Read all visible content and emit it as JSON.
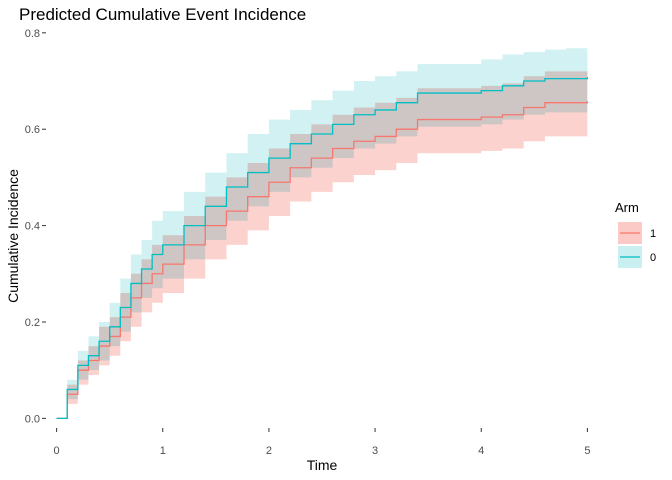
{
  "chart_data": {
    "type": "line",
    "title": "Predicted Cumulative Event Incidence",
    "xlabel": "Time",
    "ylabel": "Cumulative Incidence",
    "xlim": [
      -0.1,
      5.1
    ],
    "ylim": [
      -0.02,
      0.81
    ],
    "x_ticks": [
      0,
      1,
      2,
      3,
      4,
      5
    ],
    "y_ticks": [
      0.0,
      0.2,
      0.4,
      0.6,
      0.8
    ],
    "y_tick_labels": [
      "0.0",
      "0.2",
      "0.4",
      "0.6",
      "0.8"
    ],
    "grid": false,
    "legend": {
      "title": "Arm",
      "placement": "right"
    },
    "series": [
      {
        "name": "1",
        "color": "#F8766D",
        "ribbon_color": "#FCCAC6",
        "x": [
          0,
          0.1,
          0.2,
          0.3,
          0.4,
          0.5,
          0.6,
          0.7,
          0.8,
          0.9,
          1.0,
          1.2,
          1.4,
          1.6,
          1.8,
          2.0,
          2.2,
          2.4,
          2.6,
          2.8,
          3.0,
          3.2,
          3.4,
          3.6,
          3.8,
          4.0,
          4.2,
          4.4,
          4.6,
          4.8,
          5.0
        ],
        "y": [
          0,
          0.05,
          0.1,
          0.12,
          0.15,
          0.17,
          0.21,
          0.25,
          0.28,
          0.3,
          0.32,
          0.36,
          0.4,
          0.43,
          0.46,
          0.49,
          0.52,
          0.54,
          0.56,
          0.575,
          0.585,
          0.6,
          0.62,
          0.62,
          0.62,
          0.625,
          0.63,
          0.645,
          0.655,
          0.655,
          0.658
        ],
        "lower": [
          0,
          0.03,
          0.07,
          0.09,
          0.11,
          0.13,
          0.16,
          0.19,
          0.22,
          0.24,
          0.26,
          0.29,
          0.33,
          0.36,
          0.39,
          0.42,
          0.45,
          0.47,
          0.49,
          0.505,
          0.515,
          0.53,
          0.55,
          0.55,
          0.55,
          0.555,
          0.56,
          0.575,
          0.585,
          0.585,
          0.59
        ],
        "upper": [
          0,
          0.07,
          0.12,
          0.15,
          0.19,
          0.21,
          0.26,
          0.3,
          0.33,
          0.36,
          0.38,
          0.42,
          0.46,
          0.5,
          0.53,
          0.56,
          0.59,
          0.61,
          0.63,
          0.645,
          0.655,
          0.665,
          0.685,
          0.685,
          0.685,
          0.69,
          0.695,
          0.71,
          0.72,
          0.72,
          0.725
        ]
      },
      {
        "name": "0",
        "color": "#00BFC4",
        "ribbon_color": "#C9EFF1",
        "x": [
          0,
          0.1,
          0.2,
          0.3,
          0.4,
          0.5,
          0.6,
          0.7,
          0.8,
          0.9,
          1.0,
          1.2,
          1.4,
          1.6,
          1.8,
          2.0,
          2.2,
          2.4,
          2.6,
          2.8,
          3.0,
          3.2,
          3.4,
          3.6,
          3.8,
          4.0,
          4.2,
          4.4,
          4.6,
          4.8,
          5.0
        ],
        "y": [
          0,
          0.06,
          0.11,
          0.13,
          0.16,
          0.19,
          0.23,
          0.28,
          0.31,
          0.34,
          0.36,
          0.4,
          0.44,
          0.48,
          0.51,
          0.54,
          0.57,
          0.59,
          0.61,
          0.63,
          0.64,
          0.655,
          0.675,
          0.675,
          0.675,
          0.68,
          0.69,
          0.7,
          0.705,
          0.705,
          0.708
        ],
        "lower": [
          0,
          0.04,
          0.08,
          0.1,
          0.12,
          0.15,
          0.18,
          0.22,
          0.25,
          0.27,
          0.29,
          0.33,
          0.37,
          0.41,
          0.44,
          0.47,
          0.5,
          0.52,
          0.54,
          0.56,
          0.57,
          0.585,
          0.605,
          0.605,
          0.605,
          0.61,
          0.62,
          0.63,
          0.635,
          0.635,
          0.64
        ],
        "upper": [
          0,
          0.08,
          0.14,
          0.17,
          0.2,
          0.24,
          0.29,
          0.34,
          0.37,
          0.41,
          0.43,
          0.47,
          0.51,
          0.55,
          0.59,
          0.62,
          0.64,
          0.66,
          0.68,
          0.7,
          0.71,
          0.72,
          0.735,
          0.735,
          0.735,
          0.745,
          0.755,
          0.76,
          0.765,
          0.768,
          0.77
        ]
      }
    ]
  }
}
